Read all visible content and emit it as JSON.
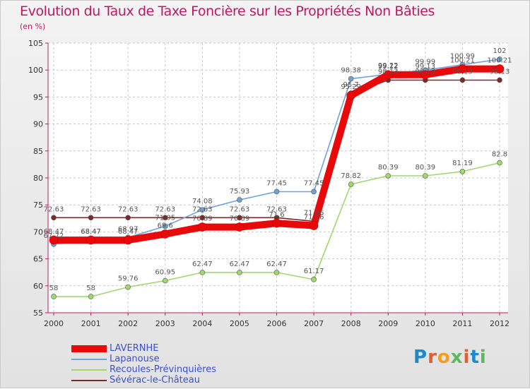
{
  "chart_data": {
    "type": "line",
    "title": "Evolution du Taux de Taxe Foncière sur les Propriétés Non Bâties",
    "ylabel": "(en %)",
    "xlabel": "",
    "ylim": [
      55,
      105
    ],
    "yticks": [
      "55",
      "60",
      "65",
      "70",
      "75",
      "80",
      "85",
      "90",
      "95",
      "100",
      "105"
    ],
    "categories": [
      "2000",
      "2001",
      "2002",
      "2003",
      "2004",
      "2005",
      "2006",
      "2007",
      "2008",
      "2009",
      "2010",
      "2011",
      "2012"
    ],
    "series": [
      {
        "name": "LAVERNHE",
        "color": "#e8090a",
        "values": [
          68.47,
          68.47,
          68.47,
          69.6,
          70.89,
          70.89,
          71.6,
          71.16,
          95.29,
          99.12,
          99.13,
          100.21,
          100.21
        ],
        "labels": [
          "68.47",
          "68.47",
          "68.47",
          "69.6",
          "70.89",
          "70.89",
          "71.6",
          "71.16",
          "95.29",
          "99.12",
          "99.13",
          "100.21",
          "100.21"
        ]
      },
      {
        "name": "Lapanouse",
        "color": "#6fa3d8",
        "values": [
          67.72,
          68.47,
          68.97,
          71.05,
          74.08,
          75.93,
          77.45,
          77.45,
          98.38,
          99.22,
          99.99,
          100.99,
          102
        ],
        "labels": [
          "67.72",
          "68.47",
          "68.97",
          "71.05",
          "74.08",
          "75.93",
          "77.45",
          "77.45",
          "98.38",
          "99.22",
          "99.99",
          "100.99",
          "102"
        ]
      },
      {
        "name": "Recoules-Prévinquières",
        "color": "#9fd86b",
        "values": [
          58,
          58,
          59.76,
          60.95,
          62.47,
          62.47,
          62.47,
          61.17,
          78.82,
          80.39,
          80.39,
          81.19,
          82.8
        ],
        "labels": [
          "58",
          "58",
          "59.76",
          "60.95",
          "62.47",
          "62.47",
          "62.47",
          "61.17",
          "78.82",
          "80.39",
          "80.39",
          "81.19",
          "82.8"
        ]
      },
      {
        "name": "Sévérac-le-Château",
        "color": "#7a2a2a",
        "values": [
          72.63,
          72.63,
          72.63,
          72.63,
          72.63,
          72.63,
          72.63,
          71.96,
          95.7,
          98.13,
          98.13,
          98.13,
          98.13
        ],
        "labels": [
          "72.63",
          "72.63",
          "72.63",
          "72.63",
          "72.63",
          "72.63",
          "72.63",
          "71.96",
          "95.7",
          "98.13",
          "98.13",
          "98.13",
          "98.13"
        ]
      }
    ]
  },
  "brand": {
    "text": "Proxiti"
  }
}
